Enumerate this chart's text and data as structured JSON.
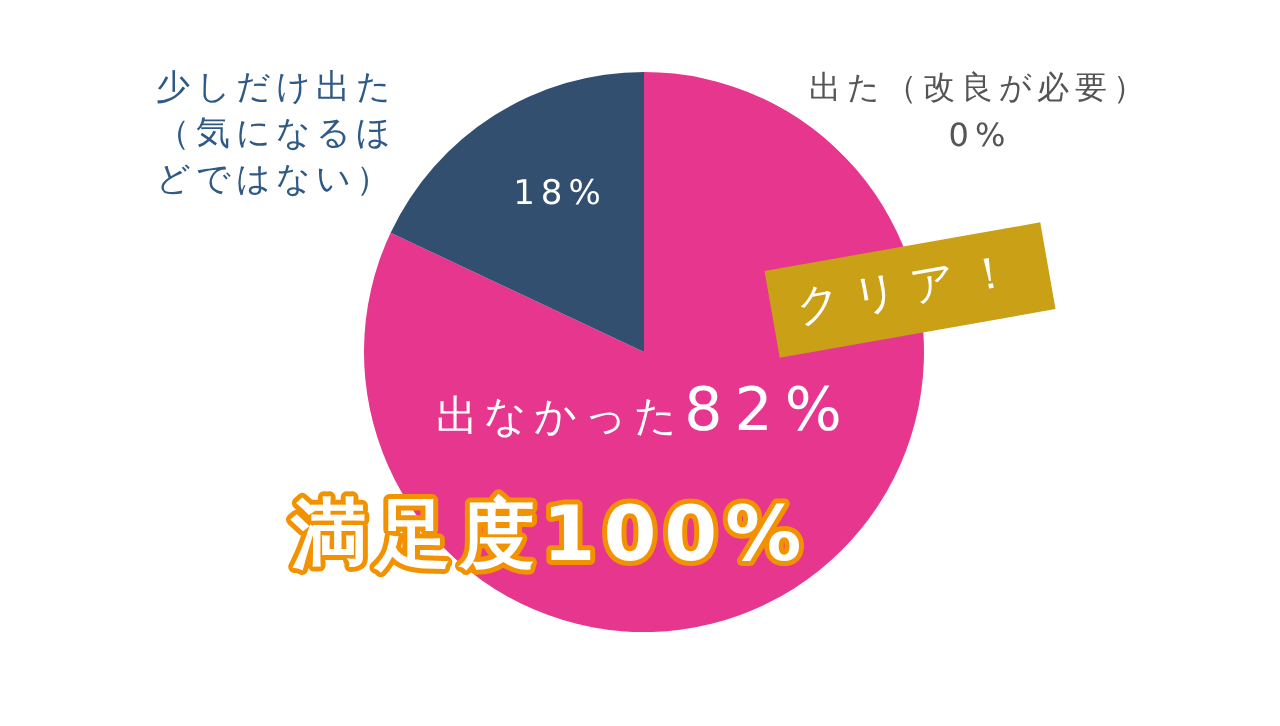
{
  "chart_data": {
    "type": "pie",
    "categories": [
      "出なかった",
      "少しだけ出た（気になるほどではない）",
      "出た（改良が必要）"
    ],
    "values": [
      82,
      18,
      0
    ],
    "colors": [
      "#e6368e",
      "#324f70",
      null
    ],
    "value_labels": [
      "82%",
      "18%",
      "0%"
    ],
    "annotations": [
      "クリア！",
      "満足度100%"
    ]
  }
}
